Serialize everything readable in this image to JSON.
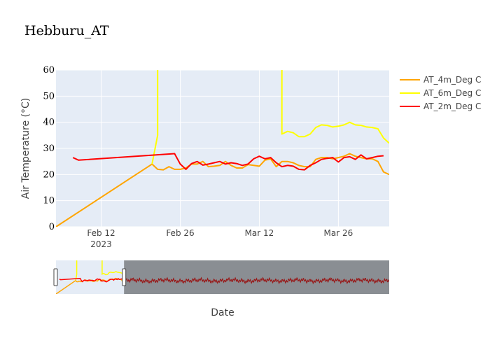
{
  "chart_data": {
    "type": "line",
    "title": "Hebburu_AT",
    "xlabel": "Date",
    "ylabel": "Air Temperature (°C)",
    "ylim": [
      0,
      60
    ],
    "yticks": [
      "0",
      "10",
      "20",
      "30",
      "40",
      "50",
      "60"
    ],
    "xlim": [
      "2023-02-04",
      "2023-04-04"
    ],
    "xticks": [
      {
        "date": "2023-02-12",
        "label": "Feb 12",
        "sub": "2023"
      },
      {
        "date": "2023-02-26",
        "label": "Feb 26",
        "sub": ""
      },
      {
        "date": "2023-03-12",
        "label": "Mar 12",
        "sub": ""
      },
      {
        "date": "2023-03-26",
        "label": "Mar 26",
        "sub": ""
      }
    ],
    "grid": true,
    "legend_position": "top-right",
    "series": [
      {
        "name": "AT_4m_Deg C",
        "color": "#FFA500",
        "points": [
          [
            "2023-02-04",
            0
          ],
          [
            "2023-02-21",
            24
          ],
          [
            "2023-02-22",
            22
          ],
          [
            "2023-02-23",
            21.8
          ],
          [
            "2023-02-24",
            23
          ],
          [
            "2023-02-25",
            22
          ],
          [
            "2023-02-26",
            22
          ],
          [
            "2023-02-27",
            22.5
          ],
          [
            "2023-02-28",
            24
          ],
          [
            "2023-03-01",
            24
          ],
          [
            "2023-03-02",
            25
          ],
          [
            "2023-03-03",
            23
          ],
          [
            "2023-03-04",
            23.2
          ],
          [
            "2023-03-05",
            23.5
          ],
          [
            "2023-03-06",
            25
          ],
          [
            "2023-03-07",
            23.5
          ],
          [
            "2023-03-08",
            22.5
          ],
          [
            "2023-03-09",
            22.5
          ],
          [
            "2023-03-10",
            23.8
          ],
          [
            "2023-03-11",
            23.5
          ],
          [
            "2023-03-12",
            23.2
          ],
          [
            "2023-03-13",
            25.5
          ],
          [
            "2023-03-14",
            26
          ],
          [
            "2023-03-15",
            23
          ],
          [
            "2023-03-16",
            25
          ],
          [
            "2023-03-17",
            25
          ],
          [
            "2023-03-18",
            24.5
          ],
          [
            "2023-03-19",
            23.5
          ],
          [
            "2023-03-20",
            23
          ],
          [
            "2023-03-21",
            23
          ],
          [
            "2023-03-22",
            25.8
          ],
          [
            "2023-03-23",
            26.5
          ],
          [
            "2023-03-24",
            26.5
          ],
          [
            "2023-03-25",
            26
          ],
          [
            "2023-03-26",
            26.5
          ],
          [
            "2023-03-27",
            27
          ],
          [
            "2023-03-28",
            28
          ],
          [
            "2023-03-29",
            27
          ],
          [
            "2023-03-30",
            26.5
          ],
          [
            "2023-03-31",
            26
          ],
          [
            "2023-04-01",
            26
          ],
          [
            "2023-04-02",
            25
          ],
          [
            "2023-04-03",
            21
          ],
          [
            "2023-04-04",
            20
          ]
        ]
      },
      {
        "name": "AT_6m_Deg C",
        "color": "#FFFF00",
        "points": [
          [
            "2023-02-21",
            24
          ],
          [
            "2023-02-22",
            35
          ],
          [
            "2023-02-22",
            60
          ],
          null,
          [
            "2023-03-16",
            60
          ],
          [
            "2023-03-16",
            35.5
          ],
          [
            "2023-03-17",
            36.5
          ],
          [
            "2023-03-18",
            36
          ],
          [
            "2023-03-19",
            34.5
          ],
          [
            "2023-03-20",
            34.5
          ],
          [
            "2023-03-21",
            35.5
          ],
          [
            "2023-03-22",
            38
          ],
          [
            "2023-03-23",
            39
          ],
          [
            "2023-03-24",
            38.8
          ],
          [
            "2023-03-25",
            38.2
          ],
          [
            "2023-03-26",
            38.5
          ],
          [
            "2023-03-27",
            39
          ],
          [
            "2023-03-28",
            40
          ],
          [
            "2023-03-29",
            39
          ],
          [
            "2023-03-30",
            38.8
          ],
          [
            "2023-03-31",
            38.2
          ],
          [
            "2023-04-01",
            38
          ],
          [
            "2023-04-02",
            37.5
          ],
          [
            "2023-04-03",
            34
          ],
          [
            "2023-04-04",
            32
          ]
        ]
      },
      {
        "name": "AT_2m_Deg C",
        "color": "#FF0000",
        "points": [
          [
            "2023-02-07",
            26.5
          ],
          [
            "2023-02-08",
            25.5
          ],
          [
            "2023-02-25",
            28
          ],
          [
            "2023-02-26",
            24
          ],
          [
            "2023-02-27",
            22
          ],
          [
            "2023-02-28",
            24.2
          ],
          [
            "2023-03-01",
            25
          ],
          [
            "2023-03-02",
            23.6
          ],
          [
            "2023-03-03",
            24
          ],
          [
            "2023-03-04",
            24.5
          ],
          [
            "2023-03-05",
            25
          ],
          [
            "2023-03-06",
            24
          ],
          [
            "2023-03-07",
            24.5
          ],
          [
            "2023-03-08",
            24.2
          ],
          [
            "2023-03-09",
            23.5
          ],
          [
            "2023-03-10",
            24
          ],
          [
            "2023-03-11",
            26
          ],
          [
            "2023-03-12",
            27
          ],
          [
            "2023-03-13",
            26
          ],
          [
            "2023-03-14",
            26.5
          ],
          [
            "2023-03-15",
            24.5
          ],
          [
            "2023-03-16",
            23
          ],
          [
            "2023-03-17",
            23.5
          ],
          [
            "2023-03-18",
            23.2
          ],
          [
            "2023-03-19",
            22
          ],
          [
            "2023-03-20",
            21.8
          ],
          [
            "2023-03-21",
            23.5
          ],
          [
            "2023-03-22",
            24.5
          ],
          [
            "2023-03-23",
            25.8
          ],
          [
            "2023-03-24",
            26.2
          ],
          [
            "2023-03-25",
            26.5
          ],
          [
            "2023-03-26",
            24.8
          ],
          [
            "2023-03-27",
            26.5
          ],
          [
            "2023-03-28",
            26.8
          ],
          [
            "2023-03-29",
            25.8
          ],
          [
            "2023-03-30",
            27.5
          ],
          [
            "2023-03-31",
            26
          ],
          [
            "2023-04-01",
            26.5
          ],
          [
            "2023-04-02",
            27
          ],
          [
            "2023-04-03",
            27.2
          ]
        ]
      }
    ],
    "rangeslider": {
      "visible": true,
      "selected_range": [
        "2023-02-04",
        "2023-04-04"
      ],
      "full_range": [
        "2023-02-04",
        "2023-11-20"
      ]
    }
  }
}
